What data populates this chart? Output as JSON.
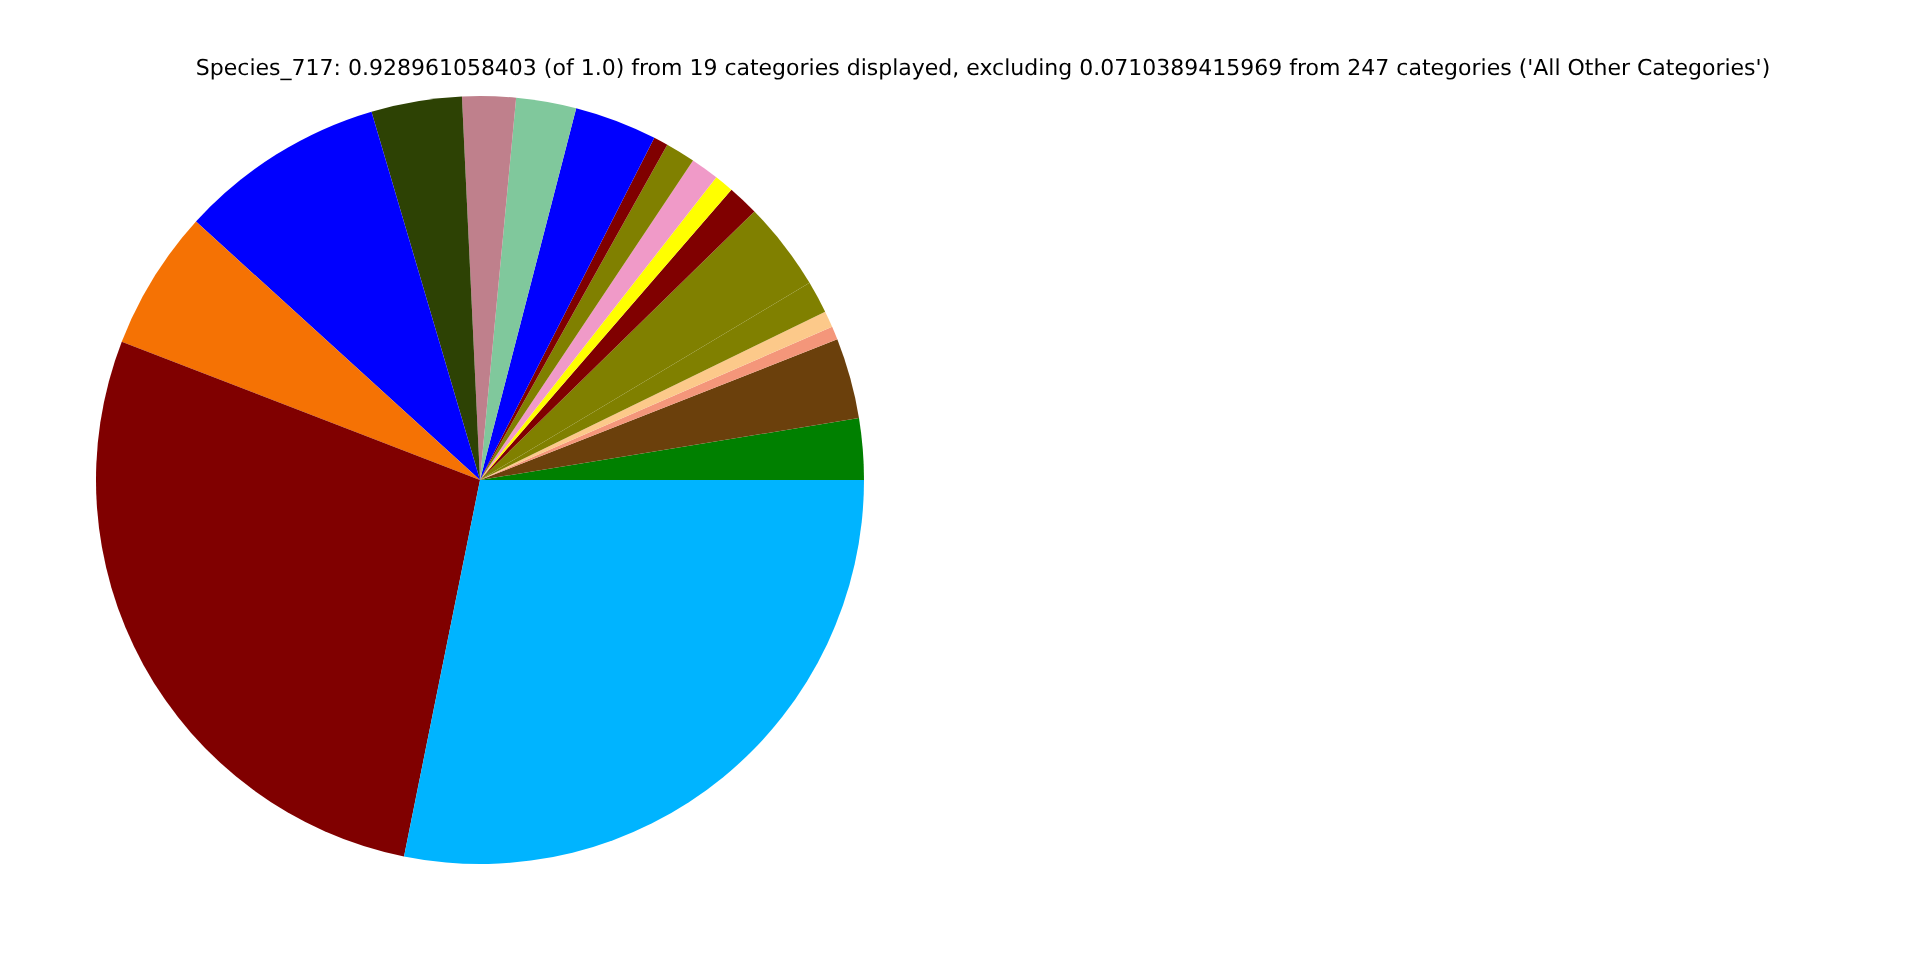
{
  "chart_data": {
    "type": "pie",
    "title": "Species_717: 0.928961058403 (of 1.0) from 19 categories displayed, excluding 0.0710389415969 from 247 categories ('All Other Categories')",
    "categories": [
      null,
      null,
      null,
      null,
      null,
      null,
      null,
      null,
      null,
      null,
      null,
      null,
      null,
      null,
      null,
      null,
      null,
      null,
      null
    ],
    "values": [
      2.58,
      3.39,
      0.56,
      0.69,
      1.36,
      3.75,
      1.31,
      0.81,
      1.19,
      1.25,
      0.61,
      3.47,
      2.53,
      2.25,
      3.81,
      8.69,
      5.89,
      27.69,
      28.17
    ],
    "colors": [
      "#008000",
      "#6b400c",
      "#f4967a",
      "#fcc98a",
      "#808000",
      "#808000",
      "#800000",
      "#ffff00",
      "#f09ac8",
      "#808000",
      "#800000",
      "#0000ff",
      "#80c89c",
      "#bf808c",
      "#2d4204",
      "#0000ff",
      "#f57204",
      "#800000",
      "#00b4ff"
    ]
  }
}
